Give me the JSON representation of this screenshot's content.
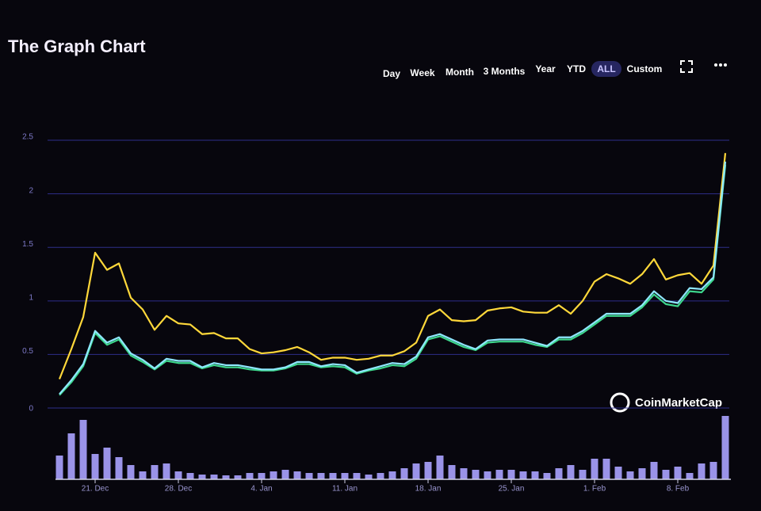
{
  "chart_data": {
    "type": "line",
    "title": "The Graph Chart",
    "range_buttons": [
      "Day",
      "Week",
      "Month",
      "3 Months",
      "Year",
      "YTD",
      "ALL",
      "Custom"
    ],
    "selected_button": 6,
    "watermark": "CoinMarketCap",
    "categories": [
      null,
      null,
      null,
      "21. Dec",
      null,
      null,
      null,
      null,
      null,
      null,
      "28. Dec",
      null,
      null,
      null,
      null,
      null,
      null,
      "4. Jan",
      null,
      null,
      null,
      null,
      null,
      null,
      "11. Jan",
      null,
      null,
      null,
      null,
      null,
      null,
      "18. Jan",
      null,
      null,
      null,
      null,
      null,
      null,
      "25. Jan",
      null,
      null,
      null,
      null,
      null,
      null,
      "1. Feb",
      null,
      null,
      null,
      null,
      null,
      null,
      "8. Feb",
      null,
      null,
      null,
      null
    ],
    "ylim": [
      0,
      2.7
    ],
    "yticks": [
      0,
      0.5,
      1,
      1.5,
      2,
      2.5
    ],
    "grid": true,
    "series": [
      {
        "color": "#ffd83a",
        "values": [
          0.27,
          0.55,
          0.85,
          1.45,
          1.29,
          1.35,
          1.03,
          0.92,
          0.73,
          0.86,
          0.79,
          0.78,
          0.69,
          0.7,
          0.65,
          0.65,
          0.55,
          0.51,
          0.52,
          0.54,
          0.57,
          0.52,
          0.45,
          0.47,
          0.47,
          0.45,
          0.46,
          0.49,
          0.49,
          0.53,
          0.61,
          0.86,
          0.92,
          0.82,
          0.81,
          0.82,
          0.91,
          0.93,
          0.94,
          0.9,
          0.89,
          0.89,
          0.96,
          0.88,
          1.0,
          1.18,
          1.25,
          1.21,
          1.16,
          1.25,
          1.39,
          1.2,
          1.24,
          1.26,
          1.16,
          1.33,
          2.38
        ]
      },
      {
        "color": "#3dd68c",
        "values": [
          0.12,
          0.24,
          0.39,
          0.7,
          0.59,
          0.64,
          0.49,
          0.43,
          0.36,
          0.44,
          0.42,
          0.42,
          0.37,
          0.4,
          0.38,
          0.38,
          0.36,
          0.35,
          0.35,
          0.37,
          0.41,
          0.41,
          0.38,
          0.39,
          0.38,
          0.32,
          0.35,
          0.37,
          0.4,
          0.39,
          0.46,
          0.64,
          0.67,
          0.62,
          0.57,
          0.54,
          0.61,
          0.62,
          0.62,
          0.62,
          0.59,
          0.57,
          0.64,
          0.64,
          0.7,
          0.78,
          0.86,
          0.86,
          0.86,
          0.94,
          1.06,
          0.97,
          0.95,
          1.09,
          1.08,
          1.2,
          2.27
        ]
      },
      {
        "color": "#8fe8ff",
        "values": [
          0.13,
          0.26,
          0.41,
          0.72,
          0.61,
          0.66,
          0.51,
          0.45,
          0.37,
          0.46,
          0.44,
          0.44,
          0.38,
          0.42,
          0.4,
          0.4,
          0.38,
          0.36,
          0.36,
          0.38,
          0.43,
          0.43,
          0.39,
          0.41,
          0.4,
          0.33,
          0.36,
          0.39,
          0.42,
          0.41,
          0.48,
          0.66,
          0.69,
          0.64,
          0.59,
          0.55,
          0.63,
          0.64,
          0.64,
          0.64,
          0.61,
          0.58,
          0.66,
          0.66,
          0.72,
          0.8,
          0.88,
          0.88,
          0.88,
          0.96,
          1.09,
          1.0,
          0.98,
          1.12,
          1.11,
          1.22,
          2.3
        ]
      }
    ],
    "volume": {
      "color": "#9a93e8",
      "ylim": [
        0,
        85
      ],
      "values": [
        30,
        58,
        75,
        32,
        40,
        28,
        18,
        10,
        18,
        20,
        10,
        8,
        6,
        6,
        5,
        5,
        8,
        8,
        10,
        12,
        10,
        8,
        8,
        8,
        8,
        8,
        6,
        8,
        10,
        14,
        20,
        22,
        30,
        18,
        14,
        12,
        10,
        12,
        12,
        10,
        10,
        8,
        14,
        18,
        12,
        26,
        26,
        16,
        10,
        14,
        22,
        12,
        16,
        8,
        20,
        22,
        80
      ]
    }
  }
}
